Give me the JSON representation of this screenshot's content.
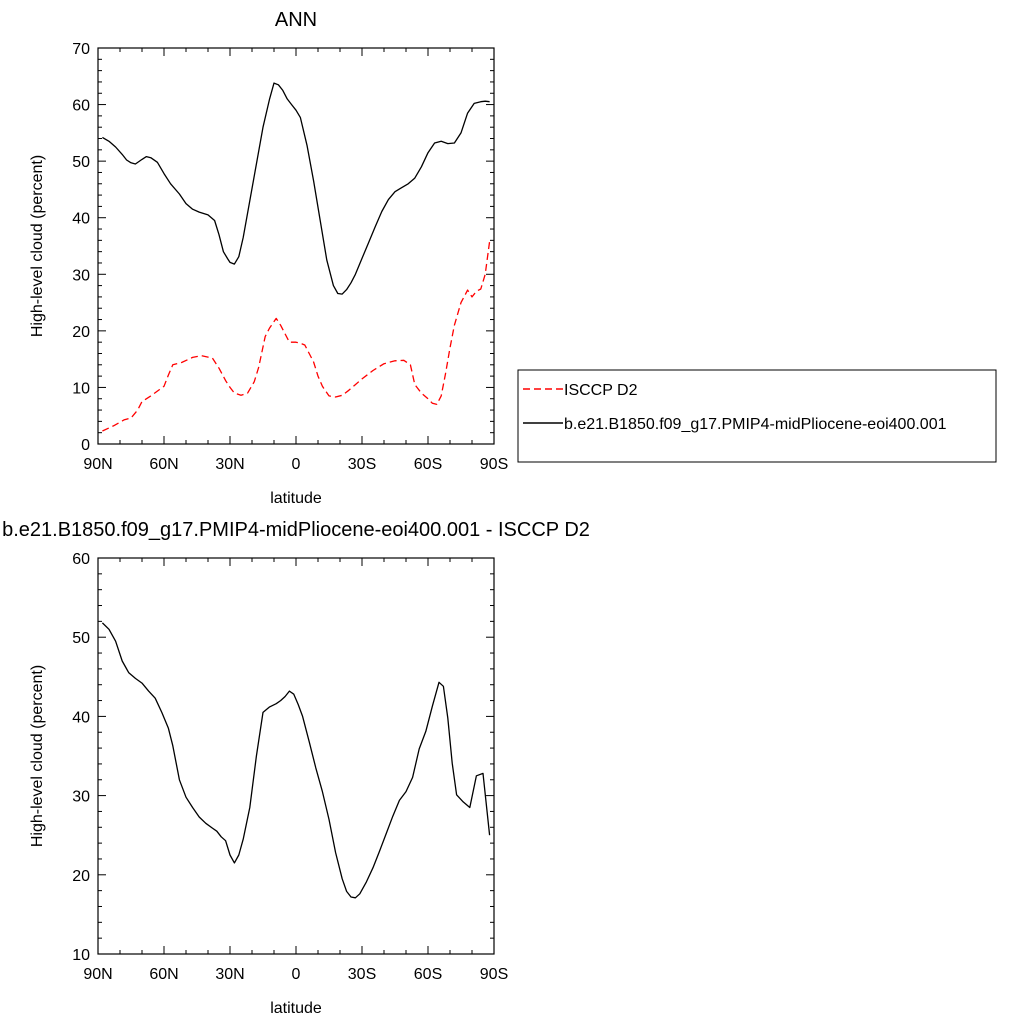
{
  "chart_data": [
    {
      "type": "line",
      "title": "ANN",
      "xlabel": "latitude",
      "ylabel": "High-level cloud (percent)",
      "xlim": [
        90,
        -90
      ],
      "ylim": [
        0,
        70
      ],
      "x_ticks": [
        90,
        60,
        30,
        0,
        -30,
        -60,
        -90
      ],
      "x_tick_labels": [
        "90N",
        "60N",
        "30N",
        "0",
        "30S",
        "60S",
        "90S"
      ],
      "y_ticks": [
        0,
        10,
        20,
        30,
        40,
        50,
        60,
        70
      ],
      "y_tick_labels": [
        "0",
        "10",
        "20",
        "30",
        "40",
        "50",
        "60",
        "70"
      ],
      "legend": {
        "placement": "right",
        "entries": [
          "ISCCP D2",
          "b.e21.B1850.f09_g17.PMIP4-midPliocene-eoi400.001"
        ]
      },
      "series": [
        {
          "name": "ISCCP D2",
          "color": "#ff0000",
          "dash": "dashed",
          "x": [
            88,
            83,
            78,
            75,
            72,
            70,
            66,
            60,
            58,
            56,
            52,
            47,
            43,
            38,
            35,
            32,
            30,
            28,
            25,
            22,
            19,
            17,
            14,
            12,
            9,
            7,
            5,
            3,
            0,
            -2,
            -4,
            -6,
            -8,
            -10,
            -12,
            -15,
            -18,
            -21,
            -24,
            -27,
            -30,
            -35,
            -40,
            -45,
            -49,
            -52,
            -54,
            -57,
            -60,
            -62,
            -64,
            -66,
            -68,
            -70,
            -72,
            -75,
            -78,
            -80,
            -82,
            -84,
            -86,
            -88
          ],
          "y": [
            2.3,
            3.2,
            4.3,
            4.6,
            6.0,
            7.5,
            8.5,
            10.2,
            12.2,
            14.0,
            14.4,
            15.3,
            15.6,
            15.2,
            13.4,
            11.2,
            10.0,
            9.0,
            8.6,
            9.0,
            11.0,
            13.5,
            19.0,
            20.5,
            22.2,
            21.0,
            19.5,
            18.0,
            18.0,
            17.8,
            17.5,
            16.0,
            14.5,
            12.0,
            10.2,
            8.5,
            8.3,
            8.6,
            9.5,
            10.5,
            11.5,
            13.0,
            14.2,
            14.7,
            14.8,
            14.0,
            10.5,
            9.0,
            8.0,
            7.2,
            7.0,
            8.5,
            12.5,
            17.0,
            21.0,
            25.0,
            27.2,
            26.0,
            27.0,
            27.4,
            30.0,
            35.8
          ]
        },
        {
          "name": "b.e21.B1850.f09_g17.PMIP4-midPliocene-eoi400.001",
          "color": "#000000",
          "dash": "solid",
          "x": [
            88,
            85,
            82,
            79,
            77,
            75,
            73,
            70,
            68,
            66,
            63,
            60,
            57,
            53,
            50,
            47,
            44,
            40,
            37,
            35,
            33,
            31,
            30,
            28,
            26,
            24,
            21,
            18,
            15,
            12,
            10,
            8,
            6,
            4,
            2,
            0,
            -2,
            -5,
            -8,
            -11,
            -14,
            -17,
            -19,
            -21,
            -23,
            -25,
            -27,
            -30,
            -33,
            -36,
            -39,
            -42,
            -45,
            -48,
            -51,
            -54,
            -57,
            -60,
            -63,
            -66,
            -69,
            -72,
            -75,
            -78,
            -81,
            -84,
            -86,
            -88
          ],
          "y": [
            54.2,
            53.5,
            52.5,
            51.2,
            50.2,
            49.7,
            49.5,
            50.3,
            50.8,
            50.6,
            49.8,
            47.8,
            46.0,
            44.2,
            42.5,
            41.5,
            41.0,
            40.5,
            39.5,
            37.0,
            34.0,
            32.7,
            32.1,
            31.8,
            33.1,
            36.5,
            43.0,
            49.5,
            56.0,
            61.0,
            63.8,
            63.5,
            62.5,
            61.0,
            60.0,
            59.0,
            57.7,
            52.8,
            46.5,
            39.5,
            32.5,
            28.0,
            26.6,
            26.5,
            27.3,
            28.5,
            30.0,
            32.8,
            35.6,
            38.4,
            41.1,
            43.2,
            44.6,
            45.3,
            46.0,
            47.0,
            49.0,
            51.5,
            53.2,
            53.5,
            53.1,
            53.2,
            55.0,
            58.5,
            60.2,
            60.5,
            60.6,
            60.5
          ]
        }
      ]
    },
    {
      "type": "line",
      "title": "b.e21.B1850.f09_g17.PMIP4-midPliocene-eoi400.001 - ISCCP D2",
      "xlabel": "latitude",
      "ylabel": "High-level cloud (percent)",
      "xlim": [
        90,
        -90
      ],
      "ylim": [
        10,
        60
      ],
      "x_ticks": [
        90,
        60,
        30,
        0,
        -30,
        -60,
        -90
      ],
      "x_tick_labels": [
        "90N",
        "60N",
        "30N",
        "0",
        "30S",
        "60S",
        "90S"
      ],
      "y_ticks": [
        10,
        20,
        30,
        40,
        50,
        60
      ],
      "y_tick_labels": [
        "10",
        "20",
        "30",
        "40",
        "50",
        "60"
      ],
      "series": [
        {
          "color": "#000000",
          "dash": "solid",
          "x": [
            88,
            85,
            82,
            79,
            76,
            73,
            70,
            67,
            64,
            61,
            58,
            56,
            53,
            50,
            47,
            44,
            41,
            38,
            36,
            34,
            32,
            30,
            28,
            26,
            24,
            21,
            18,
            15,
            12,
            9,
            7,
            5,
            3,
            1,
            -1,
            -3,
            -6,
            -9,
            -12,
            -15,
            -18,
            -21,
            -23,
            -25,
            -27,
            -29,
            -32,
            -35,
            -38,
            -41,
            -44,
            -47,
            -50,
            -53,
            -56,
            -59,
            -62,
            -65,
            -67,
            -69,
            -71,
            -73,
            -76,
            -79,
            -82,
            -85,
            -88
          ],
          "y": [
            51.8,
            51.0,
            49.5,
            47.0,
            45.5,
            44.8,
            44.2,
            43.2,
            42.3,
            40.5,
            38.5,
            36.3,
            32.0,
            29.8,
            28.5,
            27.3,
            26.5,
            25.9,
            25.5,
            24.8,
            24.3,
            22.5,
            21.5,
            22.5,
            24.5,
            28.5,
            35.0,
            40.5,
            41.2,
            41.6,
            42.0,
            42.5,
            43.2,
            42.8,
            41.5,
            40.0,
            36.8,
            33.5,
            30.5,
            27.0,
            22.8,
            19.5,
            17.9,
            17.2,
            17.1,
            17.6,
            19.1,
            20.9,
            23.0,
            25.2,
            27.4,
            29.4,
            30.5,
            32.3,
            35.9,
            38.1,
            41.3,
            44.3,
            43.8,
            39.8,
            34.1,
            30.1,
            29.2,
            28.5,
            32.5,
            32.8,
            25.0
          ]
        }
      ]
    }
  ]
}
